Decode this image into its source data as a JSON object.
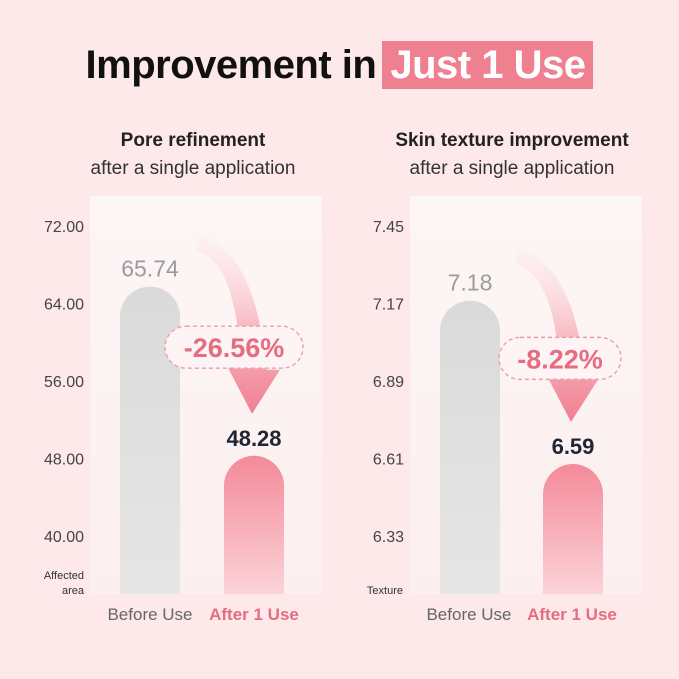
{
  "headline": {
    "prefix": "Improvement in",
    "highlight": "Just 1 Use"
  },
  "colors": {
    "background": "#fde9ea",
    "accent": "#ef8090",
    "before_bar": "#dcdcdc",
    "after_bar": "#f48a99"
  },
  "panels": [
    {
      "title": "Pore refinement",
      "subtitle": "after a single application"
    },
    {
      "title": "Skin texture improvement",
      "subtitle": "after a single application"
    }
  ],
  "chart_data": [
    {
      "type": "bar",
      "title": "Pore refinement",
      "subtitle": "after a single application",
      "ylabel": "Affected area",
      "categories": [
        "Before Use",
        "After 1 Use"
      ],
      "values": [
        65.74,
        48.28
      ],
      "value_labels": [
        "65.74",
        "48.28"
      ],
      "yticks": [
        "72.00",
        "64.00",
        "56.00",
        "48.00",
        "40.00"
      ],
      "ylim": [
        40,
        72
      ],
      "change": "-26.56%",
      "grid": false
    },
    {
      "type": "bar",
      "title": "Skin texture improvement",
      "subtitle": "after a single application",
      "ylabel": "Texture",
      "categories": [
        "Before Use",
        "After 1 Use"
      ],
      "values": [
        7.18,
        6.59
      ],
      "value_labels": [
        "7.18",
        "6.59"
      ],
      "yticks": [
        "7.45",
        "7.17",
        "6.89",
        "6.61",
        "6.33"
      ],
      "ylim": [
        6.33,
        7.45
      ],
      "change": "-8.22%",
      "grid": false
    }
  ]
}
